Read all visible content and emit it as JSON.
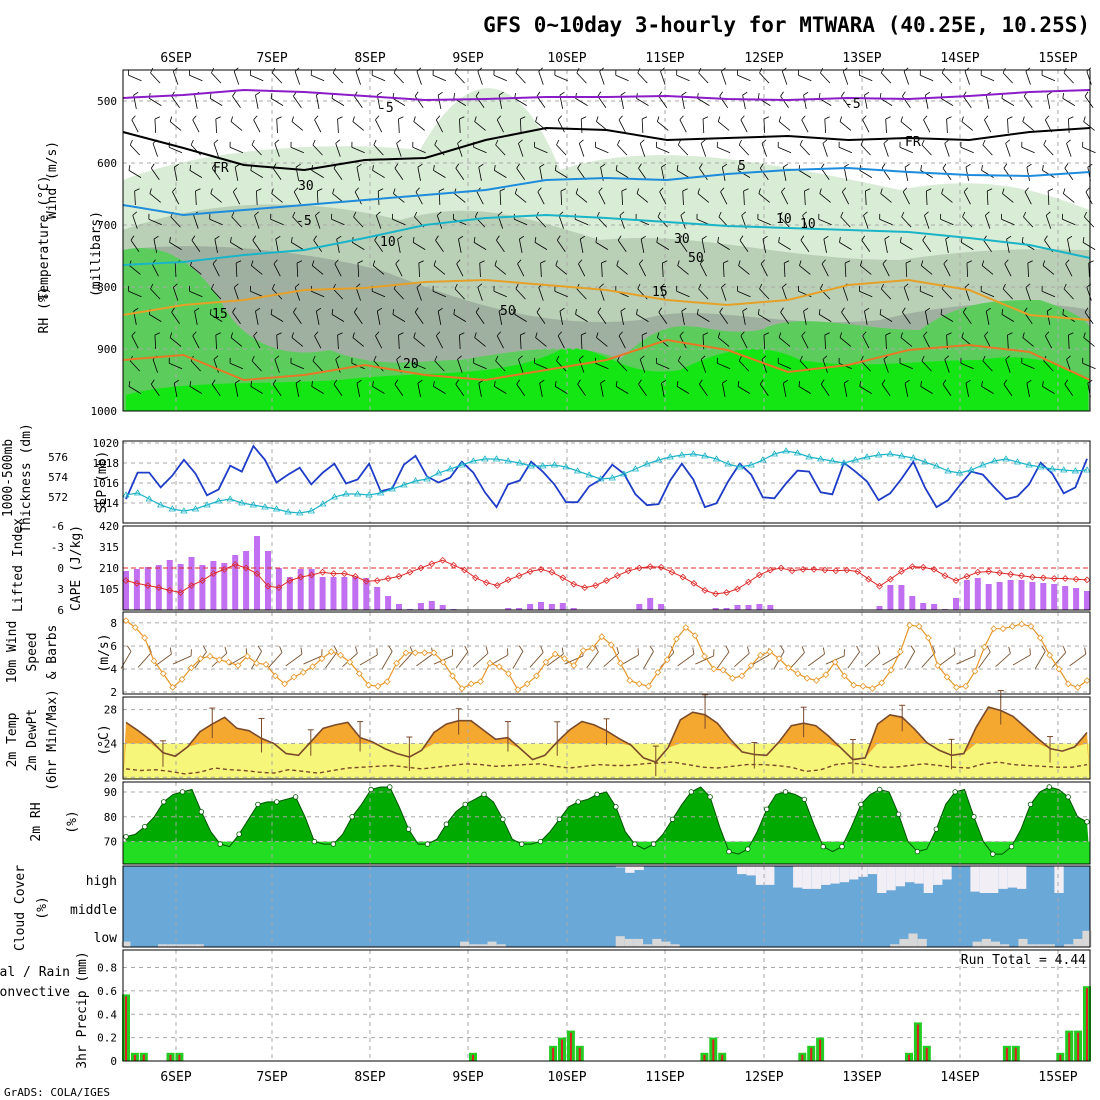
{
  "title": "GFS 0~10day 3-hourly for MTWARA (40.25E, 10.25S)",
  "footer": "GrADS: COLA/IGES",
  "day_labels": [
    "6SEP",
    "7SEP",
    "8SEP",
    "9SEP",
    "10SEP",
    "11SEP",
    "12SEP",
    "13SEP",
    "14SEP",
    "15SEP"
  ],
  "panel_labels": {
    "upper": [
      "Wind (m/s)",
      "Temperature (°C)",
      "RH (%)",
      "(millibars)"
    ],
    "slp": [
      "SLP (mb)",
      "Thickness (dm)",
      "1000-500mb"
    ],
    "cape": [
      "CAPE (J/kg)",
      "Lifted Index"
    ],
    "wind10": [
      "10m Wind",
      "Speed",
      "& Barbs",
      "(m/s)"
    ],
    "temp2m": [
      "2m Temp",
      "2m DewPt",
      "(6hr Min/Max)",
      "(°C)"
    ],
    "rh2m": [
      "2m RH",
      "(%)"
    ],
    "cloud": [
      "Cloud Cover",
      "(%)",
      "high",
      "middle",
      "low"
    ],
    "precip": [
      "3hr Precip (mm)",
      "Total / Rain",
      "Convective"
    ],
    "run_total": "Run Total = 4.44",
    "contours": [
      "-5",
      "-5",
      "FR",
      "FR",
      "-5",
      "5",
      "10",
      "10",
      "15",
      "15",
      "20",
      "30",
      "50",
      "30",
      "50",
      "10"
    ]
  },
  "colors": {
    "rh_light": "#d9ecd6",
    "rh_mid": "#b9d0b6",
    "rh_grey": "#a0b0a0",
    "rh_green": "#5ccd5c",
    "rh_bright": "#14e614",
    "t_minus5": "#8a1cc8",
    "t_fr": "#000000",
    "t_5": "#1e8cdc",
    "t_10": "#1ab4c8",
    "t_15": "#e6a028",
    "t_20": "#e67828",
    "slp": "#1e3cc8",
    "thickness": "#1eb4c8",
    "cape": "#c070f0",
    "li": "#dc2828",
    "wind10": "#e69628",
    "temp_fill": "#f5a830",
    "dew_fill": "#f6f67a",
    "rh_fill": "#00aa00",
    "rh_fill_low": "#22dd22",
    "cloud": "#6aa8d8",
    "cloud_clear": "#f2eef6",
    "precip_total": "#22cc22",
    "precip_conv": "#e02020"
  },
  "chart_data": [
    {
      "type": "area",
      "panel": "upper-air",
      "ylabel": "(millibars)",
      "x_range": [
        "5SEP12Z",
        "15SEP12Z"
      ],
      "y_range": [
        1000,
        450
      ],
      "yticks": [
        500,
        600,
        700,
        800,
        900,
        1000
      ]
    },
    {
      "type": "line",
      "panel": "slp-thickness",
      "y_left": {
        "ticks": [
          572,
          574,
          576
        ],
        "label": "Thickness (dm)"
      },
      "y_right": {
        "ticks": [
          1014,
          1016,
          1018,
          1020
        ],
        "label": "SLP (mb)"
      },
      "slp": [
        1014.8,
        1017.5,
        1017.5,
        1016,
        1017.2,
        1018.8,
        1017.4,
        1015.2,
        1015.8,
        1018.2,
        1017.6,
        1020.2,
        1018.8,
        1016.5,
        1017.3,
        1018,
        1016.3,
        1017.5,
        1018.4,
        1016.4,
        1016.8,
        1018.4,
        1015.6,
        1015.9,
        1018.3,
        1019.2,
        1017.1,
        1016.5,
        1017,
        1018.6,
        1017.5,
        1015.5,
        1014,
        1016.3,
        1016.7,
        1018.6,
        1017.6,
        1016.3,
        1014.5,
        1014.5,
        1016.1,
        1016.8,
        1018.3,
        1017.4,
        1015.3,
        1014.2,
        1014.3,
        1016.7,
        1018.4,
        1016.8,
        1014,
        1014.4,
        1016.6,
        1018.4,
        1017.3,
        1015,
        1014.9,
        1016.4,
        1017.7,
        1017.6,
        1015.5,
        1015.3,
        1018.5,
        1017.6,
        1016.6,
        1014.7,
        1015.4,
        1016.9,
        1018.6,
        1016,
        1014,
        1014.7,
        1016.2,
        1017.6,
        1017.3,
        1016,
        1014.8,
        1015.1,
        1016.3,
        1018.5,
        1017.4,
        1015.4,
        1016,
        1018.9
      ],
      "thickness": [
        572.2,
        572.4,
        571.8,
        571.2,
        570.8,
        570.6,
        570.8,
        571.2,
        571.6,
        571.8,
        571.4,
        571.2,
        571.0,
        570.8,
        570.5,
        570.4,
        570.6,
        571.3,
        572.0,
        572.3,
        572.3,
        572.2,
        572.4,
        572.8,
        573.2,
        573.6,
        573.8,
        574.4,
        574.8,
        575.2,
        575.6,
        575.8,
        575.8,
        575.6,
        575.4,
        575.1,
        575.1,
        575.2,
        575.0,
        574.6,
        574.2,
        573.8,
        573.9,
        574.3,
        574.8,
        575.3,
        575.7,
        576.0,
        576.2,
        576.3,
        576.1,
        575.8,
        575.3,
        575.0,
        575.2,
        575.7,
        576.3,
        576.6,
        576.4,
        576.0,
        575.8,
        575.6,
        575.4,
        575.7,
        576.0,
        576.2,
        576.3,
        576.1,
        575.9,
        575.5,
        575.1,
        574.6,
        574.4,
        574.7,
        575.2,
        575.6,
        575.8,
        575.5,
        575.2,
        575.0,
        574.8,
        574.7,
        574.6,
        574.7
      ]
    },
    {
      "type": "bar",
      "panel": "cape-lifted-index",
      "y_left": {
        "ticks": [
          -6,
          -3,
          0,
          3,
          6
        ],
        "label": "Lifted Index"
      },
      "y_right": {
        "ticks": [
          105,
          210,
          315,
          420
        ],
        "label": "CAPE (J/kg)"
      },
      "cape": [
        195,
        205,
        215,
        225,
        250,
        230,
        265,
        225,
        245,
        235,
        275,
        295,
        370,
        295,
        210,
        165,
        205,
        205,
        165,
        165,
        165,
        165,
        160,
        115,
        70,
        30,
        5,
        35,
        45,
        25,
        5,
        0,
        0,
        0,
        0,
        10,
        10,
        30,
        40,
        30,
        35,
        10,
        0,
        0,
        0,
        0,
        0,
        30,
        60,
        30,
        0,
        0,
        0,
        0,
        10,
        10,
        25,
        25,
        30,
        25,
        0,
        0,
        0,
        0,
        0,
        0,
        0,
        0,
        0,
        20,
        125,
        125,
        70,
        35,
        30,
        5,
        60,
        150,
        160,
        130,
        140,
        150,
        150,
        140,
        135,
        130,
        120,
        110,
        95
      ],
      "lifted_index": [
        1.8,
        2.2,
        2.5,
        2.8,
        3.2,
        3.5,
        2.5,
        1.8,
        0.8,
        0.2,
        -0.5,
        0,
        0.8,
        2.6,
        2.8,
        1.8,
        1.3,
        1,
        0.6,
        0.8,
        0.8,
        1.2,
        1.9,
        1.8,
        1.5,
        1.2,
        0.6,
        0,
        -0.6,
        -1.1,
        -0.4,
        0.3,
        1.4,
        2.1,
        2.5,
        1.7,
        1.1,
        0.5,
        0.2,
        0.6,
        1.4,
        2.3,
        2.8,
        2.5,
        1.8,
        1.1,
        0.4,
        0,
        -0.2,
        -0.1,
        0.6,
        1.3,
        2.2,
        3.2,
        3.7,
        3.5,
        3,
        2,
        1,
        0.3,
        0,
        0.4,
        0.2,
        0.2,
        0.3,
        0.4,
        0.3,
        0.5,
        1.6,
        2.6,
        1.6,
        0.5,
        -0.2,
        -0.1,
        0.2,
        1.1,
        1.8,
        1.2,
        0.6,
        0.5,
        0.7,
        0.9,
        1.1,
        1.3,
        1.4,
        1.5,
        1.5,
        1.6,
        1.7
      ]
    },
    {
      "type": "line",
      "panel": "10m-wind",
      "ylabel": "(m/s)",
      "yticks": [
        2,
        4,
        6,
        8
      ],
      "speed": [
        8.2,
        7.6,
        6.7,
        4.7,
        3.6,
        2.4,
        3.1,
        4.1,
        4.9,
        5.1,
        4.8,
        4.6,
        4.3,
        5.1,
        4.5,
        4.4,
        3.4,
        2.7,
        3.3,
        3.7,
        4.2,
        4.9,
        5.5,
        5.2,
        4.6,
        3.6,
        2.6,
        2.5,
        2.9,
        4.5,
        5.4,
        5.4,
        5.4,
        5.4,
        4.6,
        3.4,
        2.3,
        2.7,
        2.9,
        4.5,
        4.2,
        3.6,
        2.2,
        2.7,
        3.4,
        4.6,
        5.3,
        4.9,
        4.3,
        5.6,
        5.8,
        6.8,
        6.1,
        4.5,
        3,
        2.7,
        2.5,
        3.7,
        4.8,
        6.6,
        7.6,
        6.9,
        5.1,
        4,
        3.9,
        3.2,
        3.4,
        4.3,
        5.2,
        5.5,
        4.9,
        4.1,
        3.6,
        3.2,
        3,
        3.5,
        4.6,
        3.4,
        2.6,
        2.5,
        2.3,
        2.8,
        3.9,
        5.5,
        7.8,
        7.7,
        6.7,
        4.3,
        3.3,
        2.4,
        2.5,
        3.8,
        5.9,
        7.5,
        7.5,
        7.7,
        7.9,
        7.7,
        6.7,
        5.2,
        4,
        2.7,
        2.4,
        3
      ]
    },
    {
      "type": "area",
      "panel": "2m-temp-dewpoint",
      "ylabel": "(°C)",
      "yticks": [
        20,
        24,
        28
      ],
      "temp": [
        26.5,
        25.5,
        24.4,
        22.9,
        22.5,
        23.6,
        25.4,
        26.3,
        27.1,
        25.8,
        25.5,
        24.6,
        24,
        22.8,
        22.6,
        24.2,
        25.8,
        26.2,
        26.5,
        24.7,
        24.2,
        23.4,
        22.8,
        22.4,
        23.2,
        25.3,
        26.3,
        26.7,
        26.7,
        25.6,
        24.5,
        24.7,
        23.4,
        22.1,
        22.6,
        24.2,
        25.6,
        26.6,
        26.2,
        25.5,
        24.6,
        23.8,
        22.3,
        21.8,
        23.5,
        26.8,
        27.7,
        27.4,
        26.4,
        24.6,
        23,
        22.7,
        22.6,
        24.2,
        26.1,
        26.4,
        26.1,
        24.9,
        23.5,
        22.1,
        22.3,
        26.3,
        27.4,
        27.1,
        25.7,
        24.1,
        23.2,
        22.6,
        22.8,
        25.9,
        28.3,
        27.9,
        27.2,
        25.9,
        24.6,
        23.4,
        23.1,
        23.6,
        25.3
      ],
      "dewpoint": [
        21,
        20.8,
        20.9,
        20.7,
        20.4,
        20.6,
        21.1,
        20.9,
        20.8,
        20.6,
        20.5,
        20.9,
        20.7,
        20.5,
        20.8,
        21.1,
        21.2,
        21.3,
        21.4,
        21.2,
        21,
        21.2,
        21.4,
        21.6,
        21.5,
        21.3,
        21.4,
        21.5,
        21.6,
        21.3,
        21.1,
        21.3,
        21.5,
        21.4,
        21.4,
        21.6,
        21.7,
        21.8,
        21.5,
        21.2,
        21.1,
        21.3,
        21.5,
        21.5,
        21.4,
        21.2,
        20.7,
        20.9,
        21.5,
        21.7,
        21.5,
        21.2,
        21.2,
        21.4,
        21.6,
        21.4,
        21.2,
        21.1,
        21.6,
        21.8,
        21.5,
        21.4,
        21.3,
        21.2,
        21.2,
        21.5
      ]
    },
    {
      "type": "area",
      "panel": "2m-rh",
      "ylabel": "(%)",
      "yticks": [
        70,
        80,
        90
      ],
      "rh": [
        72,
        73,
        76,
        80,
        86,
        89,
        90,
        91,
        82,
        74,
        69,
        68,
        73,
        79,
        85,
        86,
        86,
        87,
        88,
        80,
        70,
        69,
        69,
        73,
        80,
        85,
        91,
        92,
        92,
        84,
        75,
        69,
        69,
        71,
        77,
        82,
        85,
        87,
        89,
        86,
        79,
        71,
        69,
        69,
        70,
        74,
        79,
        84,
        86,
        87,
        89,
        90,
        84,
        74,
        69,
        67,
        69,
        73,
        79,
        85,
        90,
        92,
        88,
        76,
        66,
        65,
        67,
        74,
        83,
        89,
        90,
        89,
        87,
        77,
        68,
        66,
        68,
        76,
        85,
        89,
        91,
        90,
        81,
        70,
        66,
        67,
        75,
        85,
        90,
        91,
        80,
        70,
        65,
        65,
        68,
        75,
        85,
        90,
        92,
        91,
        88,
        80,
        78
      ]
    },
    {
      "type": "bar",
      "panel": "cloud-cover",
      "ylabel": "(%)",
      "layers": [
        "high",
        "middle",
        "low"
      ],
      "high": [
        100,
        100,
        100,
        100,
        100,
        100,
        100,
        100,
        100,
        100,
        100,
        100,
        100,
        100,
        100,
        100,
        100,
        100,
        100,
        100,
        100,
        100,
        100,
        100,
        100,
        100,
        100,
        100,
        100,
        100,
        100,
        100,
        100,
        100,
        100,
        100,
        100,
        100,
        100,
        100,
        100,
        100,
        100,
        100,
        100,
        100,
        100,
        100,
        100,
        100,
        100,
        100,
        100,
        95,
        75,
        85,
        100,
        100,
        100,
        100,
        100,
        100,
        100,
        100,
        100,
        100,
        70,
        65,
        30,
        30,
        100,
        100,
        20,
        15,
        15,
        30,
        35,
        40,
        50,
        60,
        70,
        0,
        10,
        25,
        40,
        35,
        0,
        30,
        50,
        100,
        100,
        5,
        0,
        0,
        15,
        20,
        15,
        100,
        100,
        100,
        0,
        100,
        100,
        100
      ],
      "middle": [
        100,
        100,
        100,
        100,
        100,
        100,
        100,
        100,
        100,
        100,
        100,
        100,
        100,
        100,
        100,
        100,
        100,
        100,
        100,
        100,
        100,
        100,
        100,
        100,
        100,
        100,
        100,
        100,
        100,
        100,
        100,
        100,
        100,
        100,
        100,
        100,
        100,
        100,
        100,
        100,
        100,
        100,
        100,
        100,
        100,
        100,
        100,
        100,
        100,
        100,
        100,
        100,
        100,
        100,
        100,
        100,
        100,
        100,
        100,
        100,
        100,
        100,
        100,
        100,
        100,
        100,
        100,
        100,
        100,
        100,
        100,
        100,
        100,
        100,
        100,
        100,
        100,
        100,
        100,
        100,
        100,
        100,
        100,
        100,
        100,
        100,
        100,
        100,
        100,
        100,
        100,
        100,
        100,
        100,
        100,
        100,
        100,
        100,
        100,
        100,
        100,
        100,
        100,
        100
      ],
      "low": [
        0,
        0,
        0,
        0,
        0,
        0,
        0,
        0,
        0,
        0,
        0,
        0,
        0,
        0,
        0,
        0,
        0,
        0,
        0,
        0,
        0,
        0,
        0,
        0,
        0,
        0,
        0,
        0,
        0,
        0,
        0,
        0,
        0,
        0,
        0,
        0,
        0,
        0,
        0,
        0,
        0,
        0,
        0,
        0,
        0,
        0,
        0,
        0,
        0,
        0,
        0,
        0,
        0,
        0,
        0,
        0,
        0,
        0,
        0,
        0,
        0,
        0,
        0,
        0,
        0,
        0,
        0,
        0,
        0,
        0,
        0,
        0,
        0,
        0,
        0,
        0,
        0,
        0,
        0,
        0,
        0,
        0,
        0,
        0,
        0,
        0,
        0,
        0,
        0,
        0,
        0,
        0,
        0,
        0,
        0,
        0,
        0,
        0,
        0,
        0,
        0,
        0,
        0,
        0
      ],
      "low_fraction": [
        20,
        0,
        0,
        0,
        10,
        10,
        10,
        10,
        10,
        0,
        0,
        0,
        0,
        0,
        0,
        0,
        0,
        0,
        0,
        0,
        0,
        0,
        0,
        0,
        0,
        0,
        0,
        0,
        0,
        0,
        0,
        0,
        0,
        0,
        0,
        0,
        0,
        20,
        10,
        10,
        20,
        10,
        0,
        0,
        0,
        0,
        0,
        0,
        0,
        0,
        0,
        0,
        0,
        0,
        40,
        30,
        30,
        10,
        30,
        20,
        10,
        0,
        0,
        0,
        0,
        0,
        0,
        0,
        0,
        0,
        0,
        0,
        0,
        0,
        0,
        0,
        0,
        0,
        0,
        0,
        0,
        0,
        0,
        0,
        10,
        30,
        50,
        30,
        0,
        0,
        0,
        0,
        0,
        20,
        30,
        20,
        10,
        0,
        30,
        10,
        10,
        10,
        0,
        10,
        30,
        60
      ]
    },
    {
      "type": "bar",
      "panel": "3hr-precip",
      "ylabel": "3hr Precip (mm)",
      "yticks": [
        0,
        0.2,
        0.4,
        0.6,
        0.8
      ],
      "run_total": 4.44,
      "total": [
        0.57,
        0.07,
        0.07,
        0,
        0,
        0.07,
        0.07,
        0,
        0,
        0,
        0,
        0,
        0,
        0,
        0,
        0,
        0,
        0,
        0,
        0,
        0,
        0,
        0,
        0,
        0,
        0,
        0,
        0,
        0,
        0,
        0,
        0,
        0,
        0,
        0,
        0,
        0,
        0,
        0,
        0.07,
        0,
        0,
        0,
        0,
        0,
        0,
        0,
        0,
        0.13,
        0.2,
        0.26,
        0.13,
        0,
        0,
        0,
        0,
        0,
        0,
        0,
        0,
        0,
        0,
        0,
        0,
        0,
        0.07,
        0.2,
        0.07,
        0,
        0,
        0,
        0,
        0,
        0,
        0,
        0,
        0.07,
        0.13,
        0.2,
        0,
        0,
        0,
        0,
        0,
        0,
        0,
        0,
        0,
        0.07,
        0.33,
        0.13,
        0,
        0,
        0,
        0,
        0,
        0,
        0,
        0,
        0.13,
        0.13,
        0,
        0,
        0,
        0,
        0.07,
        0.26,
        0.26,
        0.64
      ]
    }
  ]
}
